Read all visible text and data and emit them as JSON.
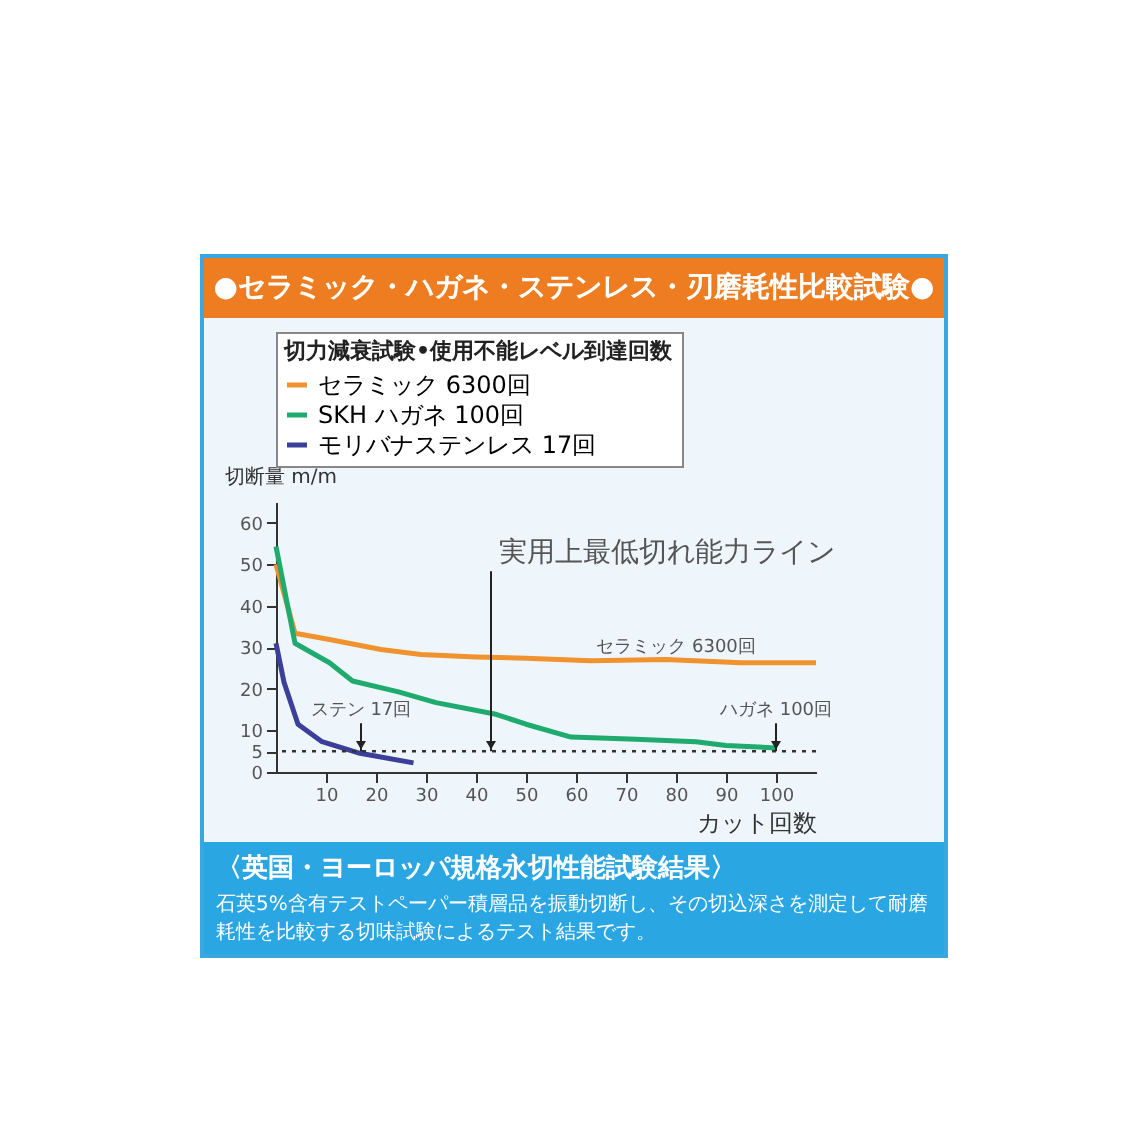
{
  "chart_data": {
    "type": "line",
    "title": "●セラミック・ハガネ・ステンレス・刃磨耗性比較試験●",
    "legend_title": "切力減衰試験•使用不能レベル到達回数",
    "ylabel": "切断量 m/m",
    "xlabel": "カット回数",
    "xlim": [
      0,
      108
    ],
    "xticks": [
      10,
      20,
      30,
      40,
      50,
      60,
      70,
      80,
      90,
      100
    ],
    "ylim": [
      0,
      65
    ],
    "yticks": [
      0,
      5,
      10,
      20,
      30,
      40,
      50,
      60
    ],
    "grid": false,
    "legend": "top",
    "line_style": "solid",
    "marker": "none",
    "ref_lines": [
      {
        "axis": "y",
        "value": 5,
        "line_style": "dotted",
        "color": "#333333"
      }
    ],
    "series": [
      {
        "name": "セラミック 6300回",
        "color": "#f0922e",
        "x": [
          0,
          3.8,
          10.7,
          21,
          29,
          40,
          50,
          63,
          78,
          93,
          108
        ],
        "values": [
          50,
          33.4,
          31.9,
          29.5,
          28.3,
          27.7,
          27.4,
          26.8,
          27.1,
          26.3,
          26.3
        ]
      },
      {
        "name": "SKH ハガネ 100回",
        "color": "#1faa6e",
        "x": [
          0,
          3.8,
          10.7,
          15.3,
          24.5,
          32,
          44,
          50,
          59,
          72,
          84,
          90,
          100
        ],
        "values": [
          54.3,
          31,
          26.3,
          21.9,
          19.3,
          16.7,
          13.9,
          11.5,
          8.4,
          7.9,
          7.3,
          6.4,
          5.8
        ]
      },
      {
        "name": "モリバナステンレス 17回",
        "color": "#3b3f9a",
        "x": [
          0,
          1.6,
          4.4,
          9.2,
          16.8,
          27.5
        ],
        "values": [
          31,
          21.6,
          11.5,
          7.3,
          4.5,
          2.2
        ]
      }
    ],
    "annotations": [
      {
        "text": "実用上最低切れ能力ライン",
        "x": 43,
        "y": 5
      },
      {
        "text": "ステン 17回",
        "x": 17,
        "y": 5
      },
      {
        "text": "ハガネ 100回",
        "x": 100,
        "y": 5
      },
      {
        "text": "セラミック 6300回",
        "x": 80,
        "y": 27
      },
      "〈英国・ヨーロッパ規格永切性能試験結果〉",
      "石英5%含有テストペーパー積層品を振動切断し、その切込深さを測定して耐磨耗性を比較する切味試験によるテスト結果です。"
    ]
  }
}
